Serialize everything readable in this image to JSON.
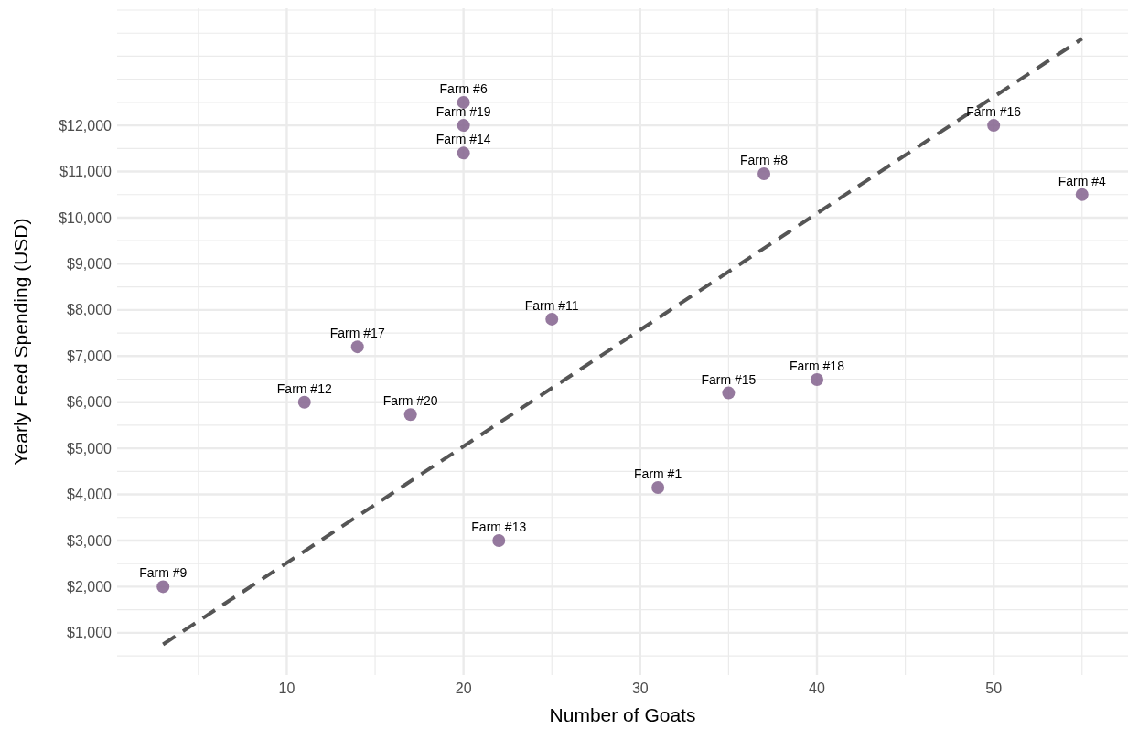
{
  "chart_data": {
    "type": "scatter",
    "xlabel": "Number of Goats",
    "ylabel": "Yearly Feed Spending (USD)",
    "xlim": [
      0.4,
      57.6
    ],
    "ylim": [
      85,
      14540
    ],
    "xticks": [
      {
        "value": 5,
        "label": null
      },
      10,
      {
        "value": 15,
        "label": null
      },
      20,
      {
        "value": 25,
        "label": null
      },
      30,
      {
        "value": 35,
        "label": null
      },
      40,
      {
        "value": 45,
        "label": null
      },
      50,
      {
        "value": 55,
        "label": null
      }
    ],
    "yticks": [
      {
        "value": 500,
        "label": null
      },
      {
        "value": 1000,
        "label": "$1,000"
      },
      {
        "value": 1500,
        "label": null
      },
      {
        "value": 2000,
        "label": "$2,000"
      },
      {
        "value": 2500,
        "label": null
      },
      {
        "value": 3000,
        "label": "$3,000"
      },
      {
        "value": 3500,
        "label": null
      },
      {
        "value": 4000,
        "label": "$4,000"
      },
      {
        "value": 4500,
        "label": null
      },
      {
        "value": 5000,
        "label": "$5,000"
      },
      {
        "value": 5500,
        "label": null
      },
      {
        "value": 6000,
        "label": "$6,000"
      },
      {
        "value": 6500,
        "label": null
      },
      {
        "value": 7000,
        "label": "$7,000"
      },
      {
        "value": 7500,
        "label": null
      },
      {
        "value": 8000,
        "label": "$8,000"
      },
      {
        "value": 8500,
        "label": null
      },
      {
        "value": 9000,
        "label": "$9,000"
      },
      {
        "value": 9500,
        "label": null
      },
      {
        "value": 10000,
        "label": "$10,000"
      },
      {
        "value": 10500,
        "label": null
      },
      {
        "value": 11000,
        "label": "$11,000"
      },
      {
        "value": 11500,
        "label": null
      },
      {
        "value": 12000,
        "label": "$12,000"
      },
      {
        "value": 12500,
        "label": null
      },
      {
        "value": 13000,
        "label": null
      },
      {
        "value": 13500,
        "label": null
      },
      {
        "value": 14000,
        "label": null
      },
      {
        "value": 14500,
        "label": null
      }
    ],
    "grid": true,
    "marker": "circle",
    "series": [
      {
        "color": "#8a6a94",
        "x": [
          31,
          55,
          20,
          37,
          3,
          25,
          11,
          22,
          20,
          35,
          50,
          14,
          40,
          20,
          17
        ],
        "values": [
          4150,
          10500,
          12500,
          10950,
          2000,
          7800,
          6000,
          3000,
          11400,
          6200,
          12000,
          7200,
          6490,
          12000,
          5730
        ]
      },
      {
        "type": "line",
        "color": "#555555",
        "line_style": "dashed",
        "marker": "none",
        "x": [
          3,
          55
        ],
        "values": [
          750,
          13880
        ]
      }
    ],
    "annotations": [
      {
        "text": "Farm #1",
        "x": 31,
        "y": 4150
      },
      {
        "text": "Farm #4",
        "x": 55,
        "y": 10500
      },
      {
        "text": "Farm #6",
        "x": 20,
        "y": 12500
      },
      {
        "text": "Farm #8",
        "x": 37,
        "y": 10950
      },
      {
        "text": "Farm #9",
        "x": 3,
        "y": 2000
      },
      {
        "text": "Farm #11",
        "x": 25,
        "y": 7800
      },
      {
        "text": "Farm #12",
        "x": 11,
        "y": 6000
      },
      {
        "text": "Farm #13",
        "x": 22,
        "y": 3000
      },
      {
        "text": "Farm #14",
        "x": 20,
        "y": 11400
      },
      {
        "text": "Farm #15",
        "x": 35,
        "y": 6200
      },
      {
        "text": "Farm #16",
        "x": 50,
        "y": 12000
      },
      {
        "text": "Farm #17",
        "x": 14,
        "y": 7200
      },
      {
        "text": "Farm #18",
        "x": 40,
        "y": 6490
      },
      {
        "text": "Farm #19",
        "x": 20,
        "y": 12000
      },
      {
        "text": "Farm #20",
        "x": 17,
        "y": 5730
      }
    ]
  }
}
